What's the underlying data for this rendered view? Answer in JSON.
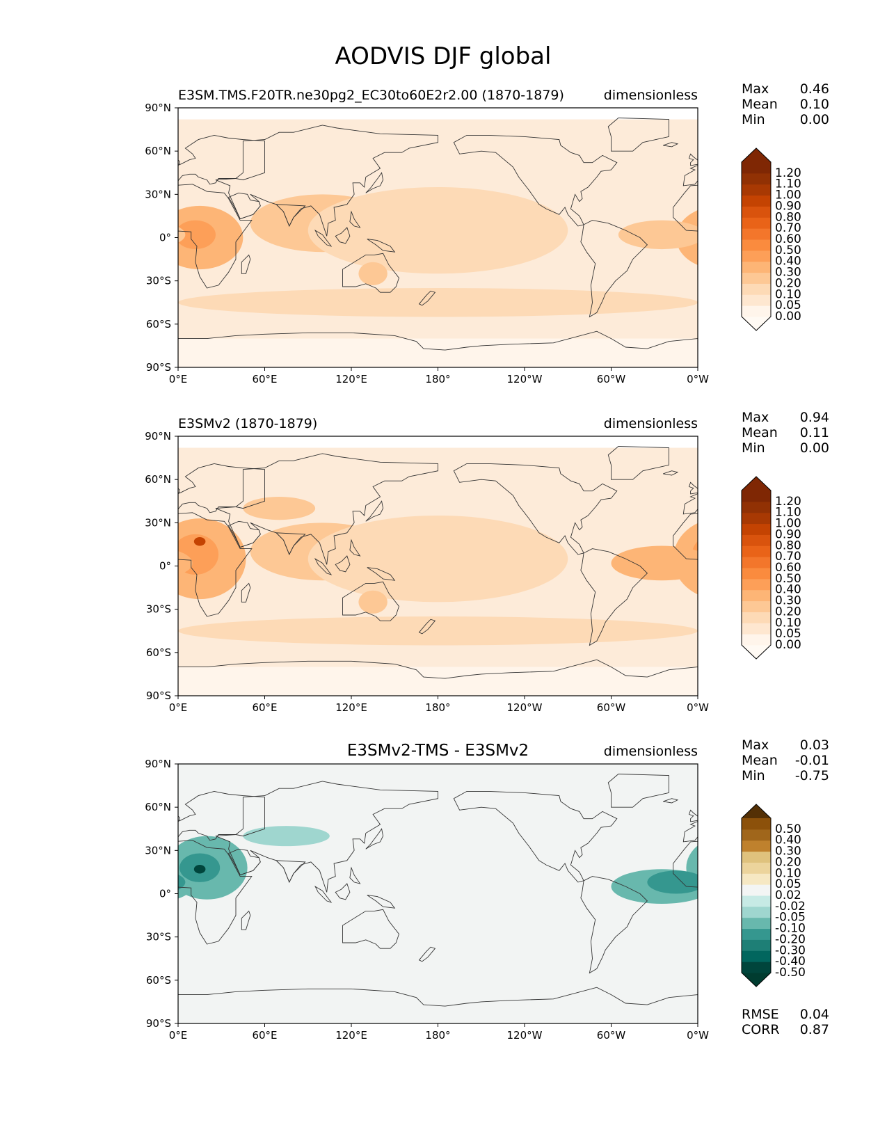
{
  "title": "AODVIS DJF global",
  "lon_ticks": [
    "0°E",
    "60°E",
    "120°E",
    "180°",
    "120°W",
    "60°W",
    "0°W"
  ],
  "lat_ticks": [
    "90°N",
    "60°N",
    "30°N",
    "0°",
    "30°S",
    "60°S",
    "90°S"
  ],
  "colors": {
    "frame": "#000000",
    "coast": "#333333",
    "ocean_bg": "#fdebd9",
    "diff_bg": "#f2f4f3"
  },
  "chart_data": [
    {
      "type": "heatmap",
      "panel": "test",
      "title_left": "E3SM.TMS.F20TR.ne30pg2_EC30to60E2r2.00 (1870-1879)",
      "title_center": "",
      "title_right": "dimensionless",
      "xlim": [
        0,
        360
      ],
      "ylim": [
        -90,
        90
      ],
      "stats": [
        {
          "label": "Max",
          "value": "0.46"
        },
        {
          "label": "Mean",
          "value": "0.10"
        },
        {
          "label": "Min",
          "value": "0.00"
        }
      ],
      "colorbar": {
        "levels": [
          "0.00",
          "0.05",
          "0.10",
          "0.20",
          "0.30",
          "0.40",
          "0.50",
          "0.60",
          "0.70",
          "0.80",
          "0.90",
          "1.00",
          "1.10",
          "1.20"
        ],
        "colors": [
          "#fff5eb",
          "#fee7d0",
          "#fddab6",
          "#fdc895",
          "#fdb576",
          "#fd9f58",
          "#fa8b3e",
          "#f3762b",
          "#e96318",
          "#d9530d",
          "#c44302",
          "#a83903",
          "#913104",
          "#7f2704"
        ],
        "under": "#fffaf4",
        "over": "#7f2704"
      },
      "field_blobs": [
        {
          "lon": 15,
          "lat": 0,
          "rlon": 30,
          "rlat": 22,
          "level": 0.3
        },
        {
          "lon": 12,
          "lat": 2,
          "rlon": 14,
          "rlat": 10,
          "level": 0.4
        },
        {
          "lon": 100,
          "lat": 10,
          "rlon": 50,
          "rlat": 20,
          "level": 0.2
        },
        {
          "lon": 180,
          "lat": 5,
          "rlon": 90,
          "rlat": 30,
          "level": 0.1
        },
        {
          "lon": 335,
          "lat": 2,
          "rlon": 30,
          "rlat": 10,
          "level": 0.2
        },
        {
          "lon": 180,
          "lat": -45,
          "rlon": 180,
          "rlat": 10,
          "level": 0.1
        },
        {
          "lon": 135,
          "lat": -25,
          "rlon": 10,
          "rlat": 8,
          "level": 0.2
        }
      ]
    },
    {
      "type": "heatmap",
      "panel": "reference",
      "title_left": "E3SMv2 (1870-1879)",
      "title_center": "",
      "title_right": "dimensionless",
      "xlim": [
        0,
        360
      ],
      "ylim": [
        -90,
        90
      ],
      "stats": [
        {
          "label": "Max",
          "value": "0.94"
        },
        {
          "label": "Mean",
          "value": "0.11"
        },
        {
          "label": "Min",
          "value": "0.00"
        }
      ],
      "colorbar": {
        "levels": [
          "0.00",
          "0.05",
          "0.10",
          "0.20",
          "0.30",
          "0.40",
          "0.50",
          "0.60",
          "0.70",
          "0.80",
          "0.90",
          "1.00",
          "1.10",
          "1.20"
        ],
        "colors": [
          "#fff5eb",
          "#fee7d0",
          "#fddab6",
          "#fdc895",
          "#fdb576",
          "#fd9f58",
          "#fa8b3e",
          "#f3762b",
          "#e96318",
          "#d9530d",
          "#c44302",
          "#a83903",
          "#913104",
          "#7f2704"
        ],
        "under": "#fffaf4",
        "over": "#7f2704"
      },
      "field_blobs": [
        {
          "lon": 15,
          "lat": 5,
          "rlon": 32,
          "rlat": 28,
          "level": 0.3
        },
        {
          "lon": 12,
          "lat": 8,
          "rlon": 16,
          "rlat": 14,
          "level": 0.4
        },
        {
          "lon": 15,
          "lat": 17,
          "rlon": 4,
          "rlat": 3,
          "level": 0.9
        },
        {
          "lon": 70,
          "lat": 40,
          "rlon": 25,
          "rlat": 8,
          "level": 0.2
        },
        {
          "lon": 100,
          "lat": 10,
          "rlon": 50,
          "rlat": 20,
          "level": 0.2
        },
        {
          "lon": 180,
          "lat": 5,
          "rlon": 90,
          "rlat": 30,
          "level": 0.1
        },
        {
          "lon": 335,
          "lat": 2,
          "rlon": 35,
          "rlat": 12,
          "level": 0.3
        },
        {
          "lon": 180,
          "lat": -45,
          "rlon": 180,
          "rlat": 10,
          "level": 0.1
        },
        {
          "lon": 135,
          "lat": -25,
          "rlon": 10,
          "rlat": 8,
          "level": 0.2
        }
      ]
    },
    {
      "type": "heatmap",
      "panel": "difference",
      "title_left": "",
      "title_center": "E3SMv2-TMS - E3SMv2",
      "title_right": "dimensionless",
      "xlim": [
        0,
        360
      ],
      "ylim": [
        -90,
        90
      ],
      "stats": [
        {
          "label": "Max",
          "value": "0.03"
        },
        {
          "label": "Mean",
          "value": "-0.01"
        },
        {
          "label": "Min",
          "value": "-0.75"
        }
      ],
      "extra_stats": [
        {
          "label": "RMSE",
          "value": "0.04"
        },
        {
          "label": "CORR",
          "value": "0.87"
        }
      ],
      "colorbar": {
        "levels": [
          "-0.50",
          "-0.40",
          "-0.30",
          "-0.20",
          "-0.10",
          "-0.05",
          "-0.02",
          "0.02",
          "0.05",
          "0.10",
          "0.20",
          "0.30",
          "0.40",
          "0.50"
        ],
        "colors": [
          "#00453c",
          "#01665e",
          "#1e7f76",
          "#35978f",
          "#68b8ad",
          "#9fd6cf",
          "#c7eae5",
          "#f3f5f4",
          "#f6e8c3",
          "#ecd49c",
          "#dfc27d",
          "#bf812d",
          "#a0661b",
          "#8c510a"
        ],
        "under": "#003c30",
        "over": "#543005"
      },
      "field_blobs": [
        {
          "lon": 20,
          "lat": 18,
          "rlon": 28,
          "rlat": 22,
          "level": -0.1
        },
        {
          "lon": 15,
          "lat": 18,
          "rlon": 14,
          "rlat": 10,
          "level": -0.2
        },
        {
          "lon": 15,
          "lat": 17,
          "rlon": 4,
          "rlat": 3,
          "level": -0.5
        },
        {
          "lon": 75,
          "lat": 40,
          "rlon": 30,
          "rlat": 7,
          "level": -0.05
        },
        {
          "lon": 335,
          "lat": 5,
          "rlon": 35,
          "rlat": 12,
          "level": -0.1
        },
        {
          "lon": 345,
          "lat": 8,
          "rlon": 20,
          "rlat": 8,
          "level": -0.2
        }
      ]
    }
  ]
}
